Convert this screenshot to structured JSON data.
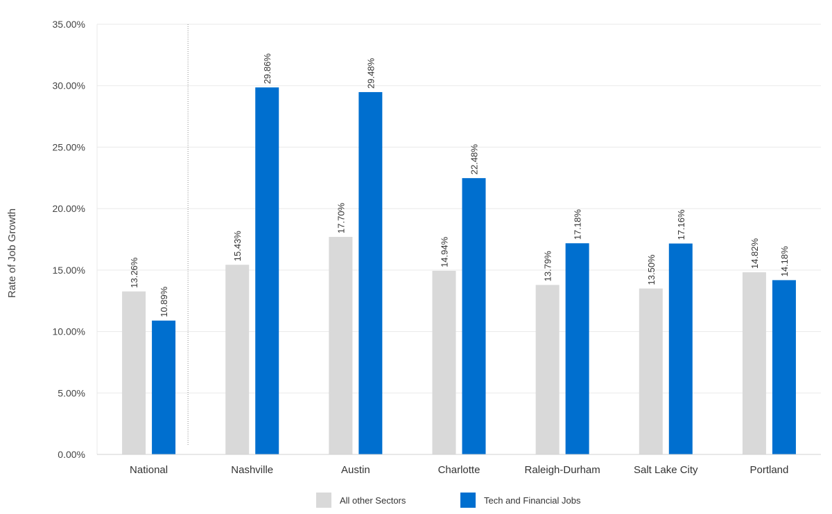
{
  "chart_data": {
    "type": "bar",
    "title": "",
    "xlabel": "",
    "ylabel": "Rate of Job Growth",
    "ylim": [
      0,
      35
    ],
    "yticks": [
      "0.00%",
      "5.00%",
      "10.00%",
      "15.00%",
      "20.00%",
      "25.00%",
      "30.00%",
      "35.00%"
    ],
    "categories": [
      "National",
      "Nashville",
      "Austin",
      "Charlotte",
      "Raleigh-Durham",
      "Salt Lake City",
      "Portland"
    ],
    "series": [
      {
        "name": "All other Sectors",
        "color": "#d9d9d9",
        "values": [
          13.26,
          15.43,
          17.7,
          14.94,
          13.79,
          13.5,
          14.82
        ],
        "labels": [
          "13.26%",
          "15.43%",
          "17.70%",
          "14.94%",
          "13.79%",
          "13.50%",
          "14.82%"
        ]
      },
      {
        "name": "Tech and Financial Jobs",
        "color": "#006fcf",
        "values": [
          10.89,
          29.86,
          29.48,
          22.48,
          17.18,
          17.16,
          14.18
        ],
        "labels": [
          "10.89%",
          "29.86%",
          "29.48%",
          "22.48%",
          "17.18%",
          "17.16%",
          "14.18%"
        ]
      }
    ],
    "grid": true,
    "legend_position": "bottom-center",
    "separator_after_category": "National"
  }
}
